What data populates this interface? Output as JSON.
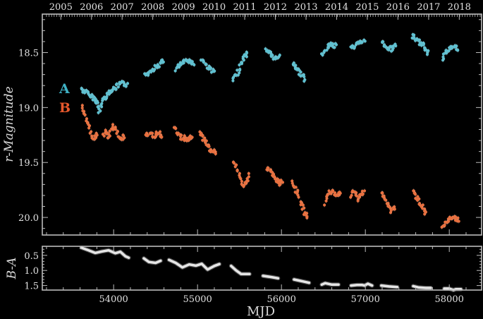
{
  "chart_data": [
    {
      "type": "scatter",
      "title": "",
      "xlabel": "MJD",
      "ylabel": "r-Magnitude",
      "top_axis_label": "",
      "top_ticks": [
        "2005",
        "2006",
        "2007",
        "2008",
        "2009",
        "2010",
        "2011",
        "2012",
        "2013",
        "2014",
        "2015",
        "2016",
        "2017",
        "2018"
      ],
      "top_tick_mjd": [
        53371,
        53736,
        54101,
        54466,
        54832,
        55197,
        55562,
        55927,
        56293,
        56658,
        57023,
        57388,
        57754,
        58119
      ],
      "xlim": [
        53150,
        58385
      ],
      "ylim": [
        20.16,
        18.15
      ],
      "y_inverted": true,
      "yticks": [
        18.5,
        19.0,
        19.5,
        20.0
      ],
      "ytick_labels": [
        "18.5",
        "19.0",
        "19.5",
        "20.0"
      ],
      "grid": false,
      "legend": [
        {
          "label": "A",
          "color": "#4fb8c9",
          "position": "left, y≈19.0"
        },
        {
          "label": "B",
          "color": "#e8693f",
          "position": "left, y≈19.0"
        }
      ],
      "series": [
        {
          "name": "A",
          "color": "#5fc0d0",
          "points": [
            [
              53620,
              18.83
            ],
            [
              53650,
              18.85
            ],
            [
              53690,
              18.87
            ],
            [
              53720,
              18.89
            ],
            [
              53760,
              18.91
            ],
            [
              53790,
              18.93
            ],
            [
              53810,
              18.96
            ],
            [
              53830,
              19.05
            ],
            [
              53860,
              18.95
            ],
            [
              53890,
              18.91
            ],
            [
              53920,
              18.89
            ],
            [
              53950,
              18.86
            ],
            [
              53980,
              18.84
            ],
            [
              54010,
              18.83
            ],
            [
              54040,
              18.81
            ],
            [
              54070,
              18.79
            ],
            [
              54100,
              18.78
            ],
            [
              54130,
              18.79
            ],
            [
              54160,
              18.79
            ],
            [
              54380,
              18.71
            ],
            [
              54410,
              18.69
            ],
            [
              54440,
              18.66
            ],
            [
              54470,
              18.65
            ],
            [
              54500,
              18.63
            ],
            [
              54530,
              18.62
            ],
            [
              54560,
              18.6
            ],
            [
              54590,
              18.58
            ],
            [
              54740,
              18.65
            ],
            [
              54770,
              18.63
            ],
            [
              54800,
              18.61
            ],
            [
              54830,
              18.59
            ],
            [
              54860,
              18.58
            ],
            [
              54890,
              18.57
            ],
            [
              54920,
              18.58
            ],
            [
              54950,
              18.6
            ],
            [
              55050,
              18.56
            ],
            [
              55080,
              18.59
            ],
            [
              55110,
              18.62
            ],
            [
              55140,
              18.64
            ],
            [
              55170,
              18.66
            ],
            [
              55200,
              18.68
            ],
            [
              55420,
              18.75
            ],
            [
              55450,
              18.72
            ],
            [
              55480,
              18.68
            ],
            [
              55510,
              18.62
            ],
            [
              55540,
              18.57
            ],
            [
              55570,
              18.53
            ],
            [
              55600,
              18.51
            ],
            [
              55820,
              18.47
            ],
            [
              55850,
              18.49
            ],
            [
              55880,
              18.52
            ],
            [
              55910,
              18.55
            ],
            [
              55940,
              18.56
            ],
            [
              55970,
              18.54
            ],
            [
              56130,
              18.6
            ],
            [
              56160,
              18.62
            ],
            [
              56190,
              18.65
            ],
            [
              56220,
              18.68
            ],
            [
              56250,
              18.71
            ],
            [
              56280,
              18.74
            ],
            [
              56490,
              18.53
            ],
            [
              56520,
              18.49
            ],
            [
              56550,
              18.45
            ],
            [
              56580,
              18.42
            ],
            [
              56610,
              18.43
            ],
            [
              56640,
              18.44
            ],
            [
              56830,
              18.44
            ],
            [
              56860,
              18.45
            ],
            [
              56890,
              18.43
            ],
            [
              56920,
              18.42
            ],
            [
              56950,
              18.41
            ],
            [
              56980,
              18.4
            ],
            [
              57200,
              18.4
            ],
            [
              57230,
              18.43
            ],
            [
              57260,
              18.45
            ],
            [
              57290,
              18.47
            ],
            [
              57320,
              18.46
            ],
            [
              57350,
              18.44
            ],
            [
              57560,
              18.35
            ],
            [
              57590,
              18.37
            ],
            [
              57620,
              18.39
            ],
            [
              57650,
              18.41
            ],
            [
              57680,
              18.43
            ],
            [
              57710,
              18.46
            ],
            [
              57740,
              18.5
            ],
            [
              57920,
              18.55
            ],
            [
              57950,
              18.51
            ],
            [
              57980,
              18.48
            ],
            [
              58010,
              18.46
            ],
            [
              58040,
              18.45
            ],
            [
              58070,
              18.45
            ],
            [
              58100,
              18.46
            ]
          ]
        },
        {
          "name": "B",
          "color": "#e8703f",
          "points": [
            [
              53620,
              19.0
            ],
            [
              53650,
              19.05
            ],
            [
              53680,
              19.12
            ],
            [
              53710,
              19.18
            ],
            [
              53740,
              19.25
            ],
            [
              53770,
              19.28
            ],
            [
              53800,
              19.25
            ],
            [
              53880,
              19.25
            ],
            [
              53910,
              19.22
            ],
            [
              53940,
              19.27
            ],
            [
              53970,
              19.21
            ],
            [
              54000,
              19.16
            ],
            [
              54030,
              19.2
            ],
            [
              54060,
              19.25
            ],
            [
              54090,
              19.28
            ],
            [
              54120,
              19.27
            ],
            [
              54390,
              19.23
            ],
            [
              54420,
              19.26
            ],
            [
              54450,
              19.24
            ],
            [
              54480,
              19.27
            ],
            [
              54510,
              19.25
            ],
            [
              54540,
              19.22
            ],
            [
              54570,
              19.26
            ],
            [
              54720,
              19.18
            ],
            [
              54750,
              19.22
            ],
            [
              54780,
              19.25
            ],
            [
              54810,
              19.28
            ],
            [
              54840,
              19.27
            ],
            [
              54870,
              19.3
            ],
            [
              54900,
              19.28
            ],
            [
              54930,
              19.26
            ],
            [
              55030,
              19.22
            ],
            [
              55060,
              19.28
            ],
            [
              55090,
              19.3
            ],
            [
              55120,
              19.35
            ],
            [
              55150,
              19.38
            ],
            [
              55180,
              19.39
            ],
            [
              55210,
              19.41
            ],
            [
              55430,
              19.5
            ],
            [
              55460,
              19.55
            ],
            [
              55490,
              19.6
            ],
            [
              55520,
              19.68
            ],
            [
              55550,
              19.71
            ],
            [
              55580,
              19.68
            ],
            [
              55610,
              19.62
            ],
            [
              55830,
              19.56
            ],
            [
              55860,
              19.56
            ],
            [
              55890,
              19.6
            ],
            [
              55920,
              19.63
            ],
            [
              55950,
              19.66
            ],
            [
              55980,
              19.69
            ],
            [
              56010,
              19.68
            ],
            [
              56130,
              19.68
            ],
            [
              56160,
              19.73
            ],
            [
              56190,
              19.78
            ],
            [
              56220,
              19.84
            ],
            [
              56250,
              19.9
            ],
            [
              56280,
              19.96
            ],
            [
              56310,
              20.0
            ],
            [
              56520,
              19.87
            ],
            [
              56550,
              19.8
            ],
            [
              56580,
              19.77
            ],
            [
              56610,
              19.76
            ],
            [
              56640,
              19.79
            ],
            [
              56670,
              19.81
            ],
            [
              56700,
              19.78
            ],
            [
              56830,
              19.8
            ],
            [
              56860,
              19.76
            ],
            [
              56890,
              19.8
            ],
            [
              56920,
              19.83
            ],
            [
              56950,
              19.79
            ],
            [
              56980,
              19.77
            ],
            [
              57190,
              19.77
            ],
            [
              57220,
              19.82
            ],
            [
              57250,
              19.86
            ],
            [
              57280,
              19.9
            ],
            [
              57310,
              19.94
            ],
            [
              57340,
              19.91
            ],
            [
              57570,
              19.77
            ],
            [
              57600,
              19.8
            ],
            [
              57630,
              19.84
            ],
            [
              57660,
              19.88
            ],
            [
              57690,
              19.91
            ],
            [
              57720,
              19.95
            ],
            [
              57920,
              20.1
            ],
            [
              57950,
              20.07
            ],
            [
              57980,
              20.04
            ],
            [
              58010,
              20.02
            ],
            [
              58040,
              20.0
            ],
            [
              58070,
              20.01
            ],
            [
              58100,
              20.02
            ]
          ]
        }
      ]
    },
    {
      "type": "line",
      "title": "",
      "xlabel": "MJD",
      "ylabel": "B−A",
      "xlim": [
        53150,
        58385
      ],
      "ylim": [
        1.65,
        0.2
      ],
      "y_inverted": true,
      "xticks": [
        54000,
        55000,
        56000,
        57000,
        58000
      ],
      "xtick_labels": [
        "54000",
        "55000",
        "56000",
        "57000",
        "58000"
      ],
      "yticks": [
        0.5,
        1.0,
        1.5
      ],
      "ytick_labels": [
        "0.5",
        "1.0",
        "1.5"
      ],
      "color": "#e6e6e6",
      "segments": [
        [
          [
            53620,
            0.25
          ],
          [
            53700,
            0.33
          ],
          [
            53780,
            0.42
          ],
          [
            53860,
            0.37
          ],
          [
            53940,
            0.33
          ],
          [
            54020,
            0.43
          ],
          [
            54080,
            0.38
          ],
          [
            54140,
            0.53
          ],
          [
            54180,
            0.58
          ]
        ],
        [
          [
            54360,
            0.6
          ],
          [
            54420,
            0.72
          ],
          [
            54500,
            0.75
          ],
          [
            54560,
            0.68
          ]
        ],
        [
          [
            54660,
            0.65
          ],
          [
            54740,
            0.75
          ],
          [
            54820,
            0.9
          ],
          [
            54900,
            0.8
          ],
          [
            54980,
            0.84
          ],
          [
            55050,
            0.78
          ],
          [
            55120,
            0.97
          ],
          [
            55200,
            0.85
          ],
          [
            55260,
            0.79
          ]
        ],
        [
          [
            55400,
            0.85
          ],
          [
            55460,
            1.0
          ],
          [
            55520,
            1.12
          ],
          [
            55620,
            1.12
          ]
        ],
        [
          [
            55780,
            1.18
          ],
          [
            55880,
            1.22
          ],
          [
            55960,
            1.26
          ]
        ],
        [
          [
            56150,
            1.3
          ],
          [
            56250,
            1.36
          ],
          [
            56330,
            1.41
          ]
        ],
        [
          [
            56480,
            1.47
          ],
          [
            56520,
            1.42
          ],
          [
            56600,
            1.47
          ],
          [
            56680,
            1.47
          ]
        ],
        [
          [
            56830,
            1.5
          ],
          [
            56900,
            1.48
          ],
          [
            56960,
            1.48
          ],
          [
            56990,
            1.5
          ],
          [
            57030,
            1.44
          ],
          [
            57080,
            1.5
          ]
        ],
        [
          [
            57190,
            1.5
          ],
          [
            57280,
            1.53
          ],
          [
            57380,
            1.55
          ]
        ],
        [
          [
            57570,
            1.52
          ],
          [
            57630,
            1.56
          ],
          [
            57720,
            1.58
          ],
          [
            57780,
            1.58
          ]
        ],
        [
          [
            57940,
            1.6
          ],
          [
            58000,
            1.6
          ],
          [
            58050,
            1.65
          ],
          [
            58080,
            1.62
          ],
          [
            58140,
            1.62
          ]
        ]
      ]
    }
  ],
  "labels": {
    "legend_a": "A",
    "legend_b": "B",
    "ylabel_top": "r-Magnitude",
    "ylabel_bottom": "B-A",
    "xlabel": "MJD"
  }
}
